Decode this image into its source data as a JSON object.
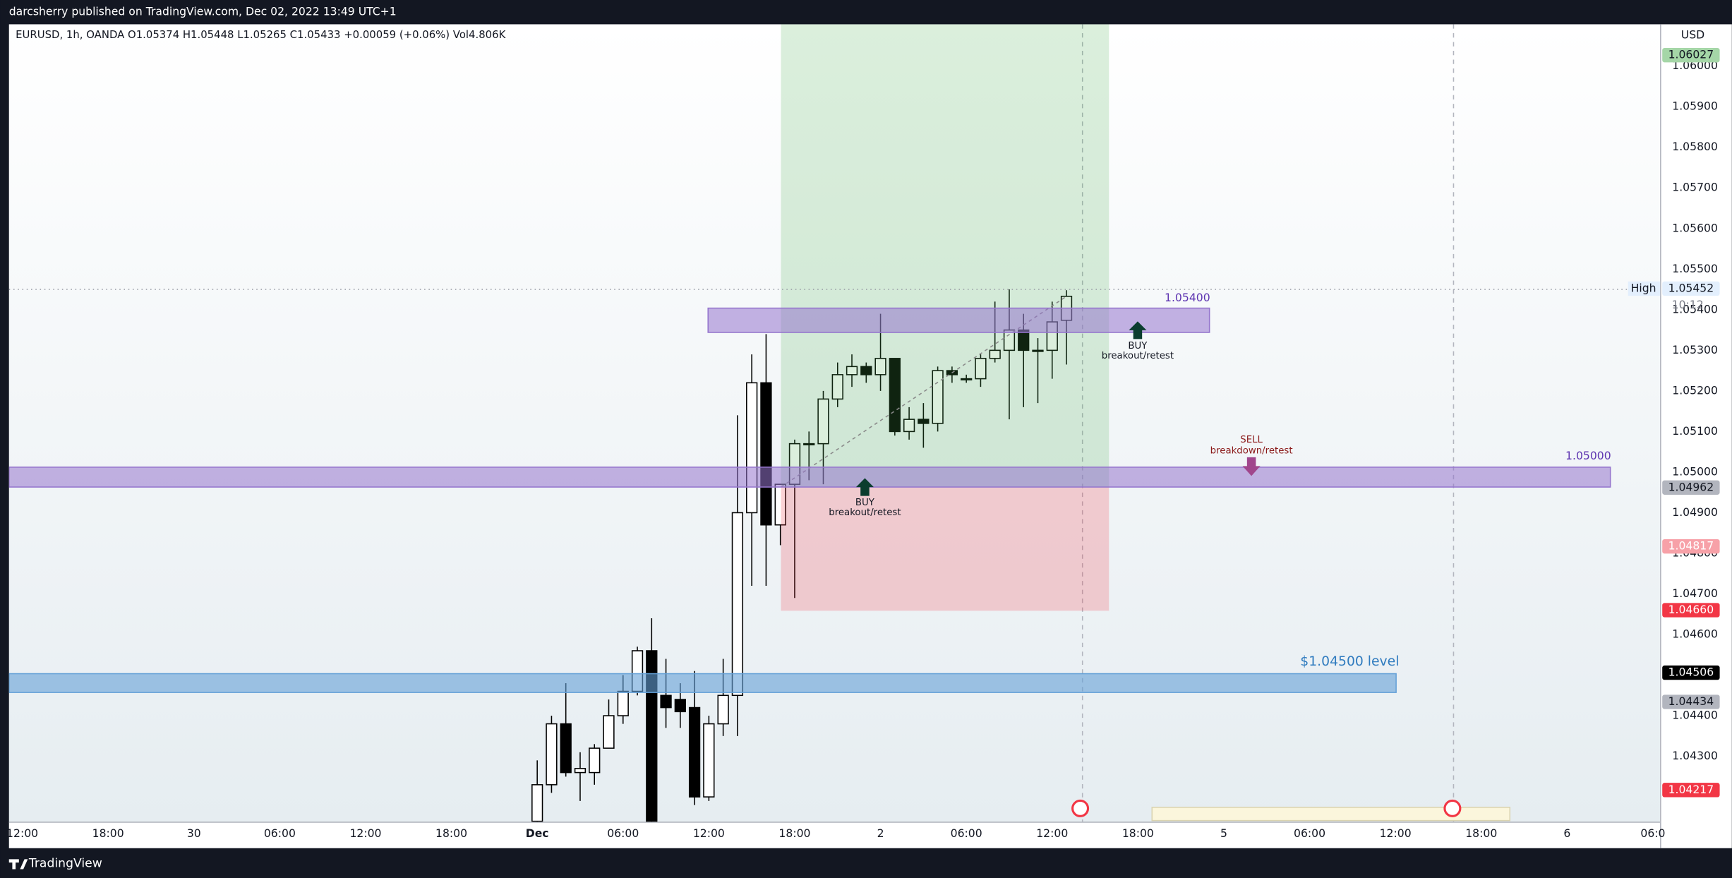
{
  "header": {
    "publisher": "darcsherry published on TradingView.com, Dec 02, 2022 13:49 UTC+1"
  },
  "chart_data": {
    "type": "candlestick",
    "legend": "EURUSD, 1h, OANDA  O1.05374  H1.05448  L1.05265  C1.05433  +0.00059 (+0.06%)  Vol4.806K",
    "currency": "USD",
    "x": [
      36,
      37,
      38,
      39,
      40,
      41,
      42,
      43,
      44,
      45,
      46,
      47,
      48,
      49,
      50,
      51,
      52,
      53,
      54,
      55,
      56,
      57,
      58,
      59,
      60,
      61,
      62,
      63,
      64,
      65,
      66,
      67,
      68,
      69,
      70,
      71,
      72,
      73
    ],
    "open": [
      1.0414,
      1.0423,
      1.0438,
      1.0426,
      1.0426,
      1.0432,
      1.044,
      1.0446,
      1.0456,
      1.0445,
      1.0444,
      1.0442,
      1.042,
      1.0438,
      1.0445,
      1.049,
      1.0522,
      1.0487,
      1.0497,
      1.0507,
      1.0507,
      1.0518,
      1.0524,
      1.0526,
      1.0524,
      1.0528,
      1.051,
      1.0513,
      1.0512,
      1.0525,
      1.0523,
      1.0523,
      1.0528,
      1.053,
      1.0535,
      1.053,
      1.053,
      1.05374
    ],
    "high": [
      1.0429,
      1.044,
      1.0448,
      1.0431,
      1.0433,
      1.0444,
      1.045,
      1.0457,
      1.0464,
      1.0454,
      1.0448,
      1.0451,
      1.044,
      1.0454,
      1.0514,
      1.0529,
      1.0534,
      1.0497,
      1.0508,
      1.051,
      1.052,
      1.0527,
      1.0529,
      1.0527,
      1.0539,
      1.0528,
      1.0516,
      1.0517,
      1.0526,
      1.0526,
      1.0524,
      1.0529,
      1.0542,
      1.0545,
      1.0539,
      1.0533,
      1.0542,
      1.05448
    ],
    "low": [
      1.0413,
      1.0421,
      1.0425,
      1.0419,
      1.0423,
      1.0432,
      1.0438,
      1.0445,
      1.041,
      1.0437,
      1.0437,
      1.0418,
      1.0419,
      1.0435,
      1.0435,
      1.0472,
      1.0472,
      1.0482,
      1.0469,
      1.0498,
      1.0497,
      1.0516,
      1.0521,
      1.0522,
      1.052,
      1.0509,
      1.0508,
      1.0506,
      1.051,
      1.0522,
      1.0522,
      1.0521,
      1.0527,
      1.0513,
      1.0516,
      1.0517,
      1.0523,
      1.05265
    ],
    "close": [
      1.0423,
      1.0438,
      1.0426,
      1.0427,
      1.0432,
      1.044,
      1.0446,
      1.0456,
      1.0413,
      1.0442,
      1.0441,
      1.042,
      1.0438,
      1.0445,
      1.049,
      1.0522,
      1.0487,
      1.0497,
      1.0507,
      1.0507,
      1.0518,
      1.0524,
      1.0526,
      1.0524,
      1.0528,
      1.051,
      1.0513,
      1.0512,
      1.0525,
      1.0524,
      1.0523,
      1.0528,
      1.053,
      1.0535,
      1.053,
      1.053,
      1.0537,
      1.05433
    ],
    "up_color": "#ffffff",
    "down_color": "#000000",
    "xlim": [
      -0.93,
      114.5
    ],
    "ylim": [
      1.04139,
      1.06103
    ],
    "xticks": [
      {
        "value": 0,
        "label": "12:00"
      },
      {
        "value": 6,
        "label": "18:00"
      },
      {
        "value": 12,
        "label": "30"
      },
      {
        "value": 18,
        "label": "06:00"
      },
      {
        "value": 24,
        "label": "12:00"
      },
      {
        "value": 30,
        "label": "18:00"
      },
      {
        "value": 36,
        "label": "Dec"
      },
      {
        "value": 42,
        "label": "06:00"
      },
      {
        "value": 48,
        "label": "12:00"
      },
      {
        "value": 54,
        "label": "18:00"
      },
      {
        "value": 60,
        "label": "2"
      },
      {
        "value": 66,
        "label": "06:00"
      },
      {
        "value": 72,
        "label": "12:00"
      },
      {
        "value": 78,
        "label": "18:00"
      },
      {
        "value": 84,
        "label": "5"
      },
      {
        "value": 90,
        "label": "06:00"
      },
      {
        "value": 96,
        "label": "12:00"
      },
      {
        "value": 102,
        "label": "18:00"
      },
      {
        "value": 108,
        "label": "6"
      },
      {
        "value": 114,
        "label": "06:0"
      }
    ],
    "yticks": [
      {
        "value": 1.043,
        "label": "1.04300"
      },
      {
        "value": 1.044,
        "label": "1.04400"
      },
      {
        "value": 1.045,
        "label": "1.04500"
      },
      {
        "value": 1.046,
        "label": "1.04600"
      },
      {
        "value": 1.047,
        "label": "1.04700"
      },
      {
        "value": 1.048,
        "label": "1.04800"
      },
      {
        "value": 1.049,
        "label": "1.04900"
      },
      {
        "value": 1.05,
        "label": "1.05000"
      },
      {
        "value": 1.051,
        "label": "1.05100"
      },
      {
        "value": 1.052,
        "label": "1.05200"
      },
      {
        "value": 1.053,
        "label": "1.05300"
      },
      {
        "value": 1.054,
        "label": "1.05400"
      },
      {
        "value": 1.055,
        "label": "1.05500"
      },
      {
        "value": 1.056,
        "label": "1.05600"
      },
      {
        "value": 1.057,
        "label": "1.05700"
      },
      {
        "value": 1.058,
        "label": "1.05800"
      },
      {
        "value": 1.059,
        "label": "1.05900"
      },
      {
        "value": 1.06,
        "label": "1.06000"
      }
    ],
    "price_labels": [
      {
        "value": 1.06027,
        "label": "1.06027",
        "color": "#a5d6a7",
        "text_color": "#131722"
      },
      {
        "value": 1.05452,
        "label": "1.05452",
        "color": "#e3effd",
        "text_color": "#131722"
      },
      {
        "value": 1.04962,
        "label": "1.04962",
        "color": "#b2b5be",
        "text_color": "#131722"
      },
      {
        "value": 1.04817,
        "label": "1.04817",
        "color": "#f7a1a8",
        "text_color": "#ffffff"
      },
      {
        "value": 1.0466,
        "label": "1.04660",
        "color": "#f23645",
        "text_color": "#ffffff"
      },
      {
        "value": 1.04506,
        "label": "1.04506",
        "color": "#000000",
        "text_color": "#ffffff"
      },
      {
        "value": 1.04434,
        "label": "1.04434",
        "color": "#b2b5be",
        "text_color": "#131722"
      },
      {
        "value": 1.04217,
        "label": "1.04217",
        "color": "#f23645",
        "text_color": "#ffffff"
      }
    ],
    "high_label": "High",
    "countdown": "10:12",
    "annotations": {
      "zone_upper": "1.05400",
      "zone_lower": "1.05000",
      "level": "$1.04500 level",
      "buy_1": [
        "BUY",
        "breakout/retest"
      ],
      "buy_2": [
        "BUY",
        "breakout/retest"
      ],
      "sell": [
        "SELL",
        "breakdown/retest"
      ]
    }
  },
  "footer": {
    "brand": "TradingView"
  }
}
